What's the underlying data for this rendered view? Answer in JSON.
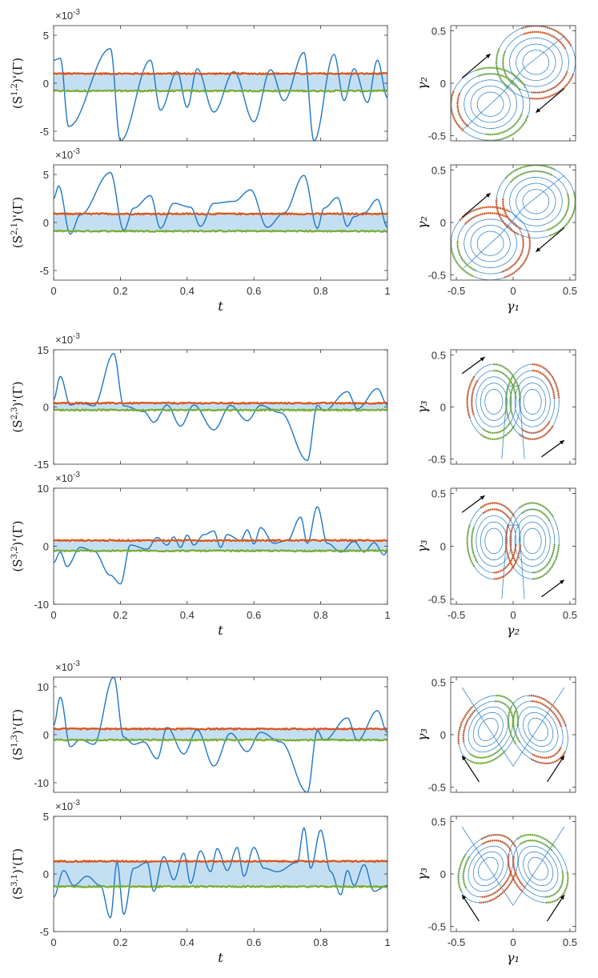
{
  "colors": {
    "signal": "#1f77c4",
    "upper": "#d95319",
    "lower": "#77ac30",
    "band": "#c5dff2"
  },
  "tick_labels": {
    "t": [
      "0",
      "0.2",
      "0.4",
      "0.6",
      "0.8",
      "1"
    ],
    "phase": [
      "-0.5",
      "0",
      "0.5"
    ]
  },
  "chart_data": [
    {
      "type": "line",
      "panel": "time",
      "row": 0,
      "ylabel": "(S^{1,2})'(Γ)",
      "multiplier": "×10^-3",
      "xlim": [
        0,
        1
      ],
      "ylim": [
        -6,
        6
      ],
      "yticks": [
        "-5",
        "0",
        "5"
      ],
      "upper_level": 1.0,
      "lower_level": -0.8,
      "xlabel": "",
      "show_xticks": false,
      "peaks": [
        [
          0.0,
          2.4
        ],
        [
          0.02,
          2.6
        ],
        [
          0.045,
          -4.5
        ],
        [
          0.17,
          3.6
        ],
        [
          0.2,
          -6.0
        ],
        [
          0.29,
          2.4
        ],
        [
          0.32,
          -2.8
        ],
        [
          0.37,
          1.2
        ],
        [
          0.4,
          -2.5
        ],
        [
          0.43,
          1.5
        ],
        [
          0.48,
          -3.0
        ],
        [
          0.54,
          1.2
        ],
        [
          0.6,
          -4.0
        ],
        [
          0.65,
          1.4
        ],
        [
          0.69,
          -1.8
        ],
        [
          0.75,
          3.2
        ],
        [
          0.78,
          -6.0
        ],
        [
          0.84,
          3.0
        ],
        [
          0.87,
          -1.8
        ],
        [
          0.9,
          1.5
        ],
        [
          0.94,
          -2.0
        ],
        [
          0.97,
          2.4
        ],
        [
          1.0,
          -1.5
        ]
      ]
    },
    {
      "type": "line",
      "panel": "time",
      "row": 1,
      "ylabel": "(S^{2,1})'(Γ)",
      "multiplier": "×10^-3",
      "xlim": [
        0,
        1
      ],
      "ylim": [
        -6,
        6
      ],
      "yticks": [
        "-5",
        "0",
        "5"
      ],
      "upper_level": 0.9,
      "lower_level": -0.9,
      "xlabel": "t",
      "show_xticks": true,
      "peaks": [
        [
          0.0,
          2.5
        ],
        [
          0.015,
          3.8
        ],
        [
          0.05,
          -1.2
        ],
        [
          0.08,
          0.8
        ],
        [
          0.17,
          5.2
        ],
        [
          0.21,
          -0.8
        ],
        [
          0.24,
          1.5
        ],
        [
          0.29,
          2.8
        ],
        [
          0.32,
          -0.6
        ],
        [
          0.36,
          2.0
        ],
        [
          0.41,
          1.6
        ],
        [
          0.44,
          -0.4
        ],
        [
          0.48,
          2.0
        ],
        [
          0.54,
          2.2
        ],
        [
          0.59,
          3.4
        ],
        [
          0.64,
          -0.5
        ],
        [
          0.69,
          1.0
        ],
        [
          0.75,
          4.9
        ],
        [
          0.79,
          -0.6
        ],
        [
          0.81,
          1.5
        ],
        [
          0.85,
          2.6
        ],
        [
          0.88,
          -0.4
        ],
        [
          0.9,
          0.6
        ],
        [
          0.93,
          1.0
        ],
        [
          0.97,
          2.4
        ],
        [
          1.0,
          -0.5
        ]
      ]
    },
    {
      "type": "line",
      "panel": "time",
      "row": 2,
      "ylabel": "(S^{2,3})'(Γ)",
      "multiplier": "×10^-3",
      "xlim": [
        0,
        1
      ],
      "ylim": [
        -15,
        15
      ],
      "yticks": [
        "-15",
        "0",
        "15"
      ],
      "upper_level": 1.0,
      "lower_level": -0.8,
      "xlabel": "",
      "show_xticks": false,
      "peaks": [
        [
          0.0,
          2.0
        ],
        [
          0.02,
          8.0
        ],
        [
          0.05,
          0.5
        ],
        [
          0.08,
          1.2
        ],
        [
          0.12,
          0.3
        ],
        [
          0.18,
          14.0
        ],
        [
          0.21,
          0.3
        ],
        [
          0.27,
          -1.2
        ],
        [
          0.3,
          -4.0
        ],
        [
          0.34,
          0.5
        ],
        [
          0.38,
          -5.0
        ],
        [
          0.42,
          0.5
        ],
        [
          0.48,
          -6.0
        ],
        [
          0.53,
          0.4
        ],
        [
          0.58,
          -3.6
        ],
        [
          0.62,
          0.4
        ],
        [
          0.68,
          -1.5
        ],
        [
          0.76,
          -14.0
        ],
        [
          0.79,
          0.4
        ],
        [
          0.81,
          -1.0
        ],
        [
          0.88,
          4.0
        ],
        [
          0.91,
          -0.5
        ],
        [
          0.97,
          4.8
        ],
        [
          1.0,
          0.5
        ]
      ]
    },
    {
      "type": "line",
      "panel": "time",
      "row": 3,
      "ylabel": "(S^{3,2})'(Γ)",
      "multiplier": "×10^-3",
      "xlim": [
        0,
        1
      ],
      "ylim": [
        -10,
        10
      ],
      "yticks": [
        "-10",
        "0",
        "10"
      ],
      "upper_level": 1.0,
      "lower_level": -0.8,
      "xlabel": "t",
      "show_xticks": true,
      "peaks": [
        [
          0.0,
          -2.8
        ],
        [
          0.02,
          -1.0
        ],
        [
          0.04,
          -3.5
        ],
        [
          0.08,
          -0.2
        ],
        [
          0.12,
          -0.8
        ],
        [
          0.17,
          -5.0
        ],
        [
          0.2,
          -6.5
        ],
        [
          0.23,
          0.2
        ],
        [
          0.28,
          -0.5
        ],
        [
          0.31,
          1.5
        ],
        [
          0.34,
          0.2
        ],
        [
          0.36,
          1.6
        ],
        [
          0.38,
          -0.2
        ],
        [
          0.4,
          1.9
        ],
        [
          0.42,
          0.2
        ],
        [
          0.45,
          2.0
        ],
        [
          0.48,
          2.6
        ],
        [
          0.5,
          -0.2
        ],
        [
          0.52,
          2.0
        ],
        [
          0.56,
          1.0
        ],
        [
          0.58,
          2.8
        ],
        [
          0.6,
          0.4
        ],
        [
          0.62,
          3.2
        ],
        [
          0.66,
          0.5
        ],
        [
          0.7,
          1.0
        ],
        [
          0.74,
          5.0
        ],
        [
          0.76,
          0.5
        ],
        [
          0.79,
          6.8
        ],
        [
          0.82,
          0.5
        ],
        [
          0.86,
          -1.0
        ],
        [
          0.9,
          0.8
        ],
        [
          0.93,
          -1.0
        ],
        [
          0.96,
          0.6
        ],
        [
          0.99,
          -1.5
        ],
        [
          1.0,
          -0.8
        ]
      ]
    },
    {
      "type": "line",
      "panel": "time",
      "row": 4,
      "ylabel": "(S^{1,3})'(Γ)",
      "multiplier": "×10^-3",
      "xlim": [
        0,
        1
      ],
      "ylim": [
        -12,
        12
      ],
      "yticks": [
        "-10",
        "0",
        "10"
      ],
      "upper_level": 1.2,
      "lower_level": -1.1,
      "xlabel": "",
      "show_xticks": false,
      "peaks": [
        [
          0.0,
          2.0
        ],
        [
          0.02,
          7.8
        ],
        [
          0.05,
          -2.5
        ],
        [
          0.08,
          -1.0
        ],
        [
          0.12,
          -2.0
        ],
        [
          0.18,
          12.0
        ],
        [
          0.21,
          -0.5
        ],
        [
          0.24,
          -2.0
        ],
        [
          0.27,
          -1.5
        ],
        [
          0.31,
          -5.0
        ],
        [
          0.34,
          1.5
        ],
        [
          0.39,
          -4.0
        ],
        [
          0.43,
          1.0
        ],
        [
          0.48,
          -6.5
        ],
        [
          0.53,
          0.3
        ],
        [
          0.58,
          -3.5
        ],
        [
          0.62,
          0.5
        ],
        [
          0.68,
          -1.5
        ],
        [
          0.76,
          -12.0
        ],
        [
          0.79,
          0.8
        ],
        [
          0.81,
          -1.2
        ],
        [
          0.88,
          3.5
        ],
        [
          0.91,
          -1.2
        ],
        [
          0.97,
          5.0
        ],
        [
          1.0,
          0.5
        ]
      ]
    },
    {
      "type": "line",
      "panel": "time",
      "row": 5,
      "ylabel": "(S^{3,1})'(Γ)",
      "multiplier": "×10^-3",
      "xlim": [
        0,
        1
      ],
      "ylim": [
        -5,
        5
      ],
      "yticks": [
        "-5",
        "0",
        "5"
      ],
      "upper_level": 1.1,
      "lower_level": -1.1,
      "xlabel": "t",
      "show_xticks": true,
      "peaks": [
        [
          0.0,
          -2.0
        ],
        [
          0.03,
          0.3
        ],
        [
          0.06,
          -1.0
        ],
        [
          0.1,
          -0.2
        ],
        [
          0.14,
          -1.0
        ],
        [
          0.17,
          -3.8
        ],
        [
          0.19,
          1.0
        ],
        [
          0.21,
          -3.5
        ],
        [
          0.24,
          0.5
        ],
        [
          0.28,
          1.0
        ],
        [
          0.3,
          -1.5
        ],
        [
          0.33,
          1.5
        ],
        [
          0.36,
          -0.5
        ],
        [
          0.39,
          1.8
        ],
        [
          0.41,
          -0.8
        ],
        [
          0.44,
          2.0
        ],
        [
          0.47,
          0.2
        ],
        [
          0.49,
          2.2
        ],
        [
          0.52,
          0.3
        ],
        [
          0.55,
          2.3
        ],
        [
          0.57,
          -0.2
        ],
        [
          0.6,
          2.3
        ],
        [
          0.63,
          0.5
        ],
        [
          0.67,
          0.2
        ],
        [
          0.73,
          1.0
        ],
        [
          0.75,
          4.0
        ],
        [
          0.77,
          0.5
        ],
        [
          0.8,
          3.8
        ],
        [
          0.83,
          0.2
        ],
        [
          0.86,
          -1.8
        ],
        [
          0.88,
          0.3
        ],
        [
          0.9,
          -1.0
        ],
        [
          0.93,
          0.8
        ],
        [
          0.96,
          -1.5
        ],
        [
          1.0,
          -1.0
        ]
      ]
    },
    {
      "type": "scatter",
      "panel": "phase",
      "row": 0,
      "xlabel": "",
      "ylabel": "γ₂",
      "xlim": [
        -0.55,
        0.55
      ],
      "ylim": [
        -0.55,
        0.55
      ],
      "show_xticks": false,
      "projection": "xy",
      "mirror": false,
      "arrows": "clockwise"
    },
    {
      "type": "scatter",
      "panel": "phase",
      "row": 1,
      "xlabel": "γ₁",
      "ylabel": "γ₂",
      "xlim": [
        -0.55,
        0.55
      ],
      "ylim": [
        -0.55,
        0.55
      ],
      "show_xticks": true,
      "projection": "xy",
      "mirror": true,
      "arrows": "clockwise"
    },
    {
      "type": "scatter",
      "panel": "phase",
      "row": 2,
      "xlabel": "",
      "ylabel": "γ₃",
      "xlim": [
        -0.55,
        0.55
      ],
      "ylim": [
        -0.55,
        0.55
      ],
      "show_xticks": false,
      "projection": "yz",
      "mirror": false,
      "arrows": "outward"
    },
    {
      "type": "scatter",
      "panel": "phase",
      "row": 3,
      "xlabel": "γ₂",
      "ylabel": "γ₃",
      "xlim": [
        -0.55,
        0.55
      ],
      "ylim": [
        -0.55,
        0.55
      ],
      "show_xticks": true,
      "projection": "yz",
      "mirror": true,
      "arrows": "outward"
    },
    {
      "type": "scatter",
      "panel": "phase",
      "row": 4,
      "xlabel": "",
      "ylabel": "γ₃",
      "xlim": [
        -0.55,
        0.55
      ],
      "ylim": [
        -0.55,
        0.55
      ],
      "show_xticks": false,
      "projection": "xz",
      "mirror": false,
      "arrows": "upward"
    },
    {
      "type": "scatter",
      "panel": "phase",
      "row": 5,
      "xlabel": "γ₁",
      "ylabel": "γ₃",
      "xlim": [
        -0.55,
        0.55
      ],
      "ylim": [
        -0.55,
        0.55
      ],
      "show_xticks": true,
      "projection": "xz",
      "mirror": true,
      "arrows": "upward"
    }
  ]
}
